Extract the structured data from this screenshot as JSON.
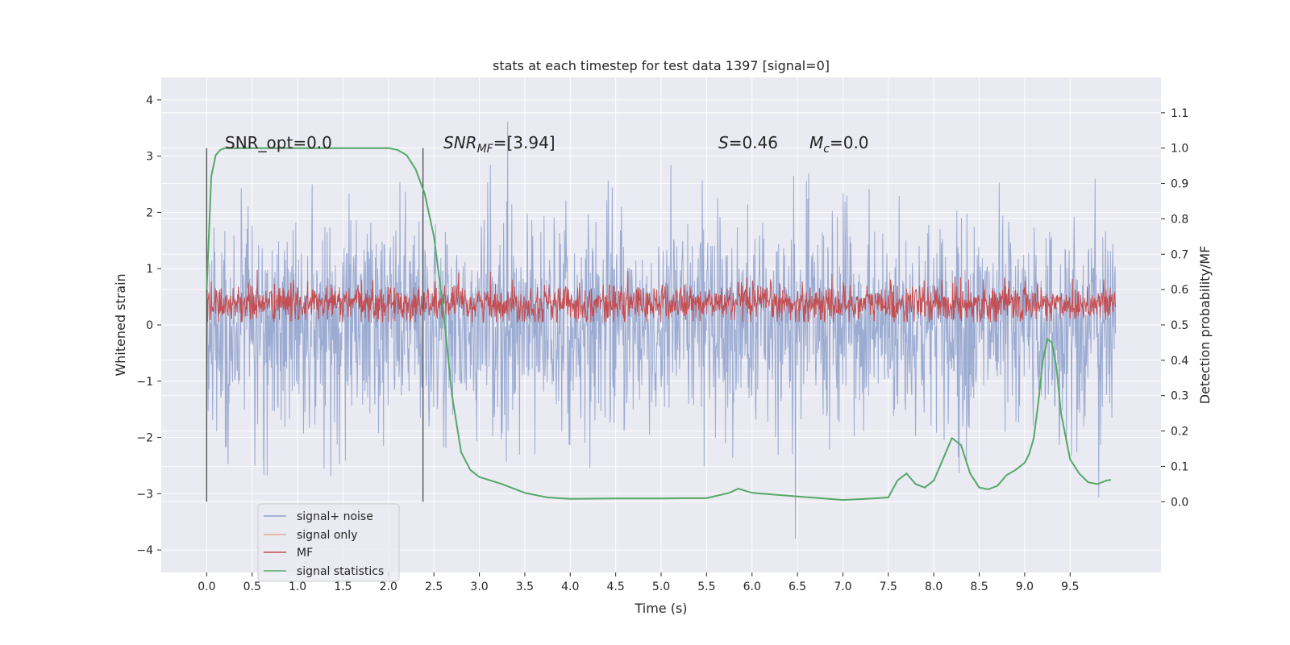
{
  "chart_data": {
    "type": "line",
    "title": "stats at each timestep for test data 1397 [signal=0]",
    "xlabel": "Time (s)",
    "ylabel": "Whitened strain",
    "y2label": "Detection probability/MF",
    "xlim": [
      -0.5,
      10.5
    ],
    "ylim": [
      -4.4,
      4.4
    ],
    "y2lim": [
      -0.2,
      1.2
    ],
    "grid": true,
    "legend_placement": "lower-left",
    "x_ticks": [
      0.0,
      0.5,
      1.0,
      1.5,
      2.0,
      2.5,
      3.0,
      3.5,
      4.0,
      4.5,
      5.0,
      5.5,
      6.0,
      6.5,
      7.0,
      7.5,
      8.0,
      8.5,
      9.0,
      9.5
    ],
    "x_tick_labels": [
      "0.0",
      "0.5",
      "1.0",
      "1.5",
      "2.0",
      "2.5",
      "3.0",
      "3.5",
      "4.0",
      "4.5",
      "5.0",
      "5.5",
      "6.0",
      "6.5",
      "7.0",
      "7.5",
      "8.0",
      "8.5",
      "9.0",
      "9.5"
    ],
    "y_ticks": [
      4,
      3,
      2,
      1,
      0,
      -1,
      -2,
      -3,
      -4
    ],
    "y_tick_labels": [
      "4",
      "3",
      "2",
      "1",
      "0",
      "−1",
      "−2",
      "−3",
      "−4"
    ],
    "y2_ticks": [
      1.1,
      1.0,
      0.9,
      0.8,
      0.7,
      0.6,
      0.5,
      0.4,
      0.3,
      0.2,
      0.1,
      0.0
    ],
    "y2_tick_labels": [
      "1.1",
      "1.0",
      "0.9",
      "0.8",
      "0.7",
      "0.6",
      "0.5",
      "0.4",
      "0.3",
      "0.2",
      "0.1",
      "0.0"
    ],
    "annotations": {
      "snr_opt": "SNR_opt=0.0",
      "snr_mf_main": "SNR",
      "snr_mf_sub": "MF",
      "snr_mf_rest": "=[3.94]",
      "s_main": "S",
      "s_rest": "=0.46",
      "mc_main": "M",
      "mc_sub": "c",
      "mc_rest": "=0.0"
    },
    "vertical_lines_x": [
      0.0,
      2.38
    ],
    "series": [
      {
        "name": "signal+ noise",
        "color": "#8da0cb",
        "axis": "left",
        "kind": "noise",
        "x_range": [
          0.0,
          10.0
        ],
        "typical_range": [
          -1.9,
          1.9
        ],
        "max": 4.0,
        "min": -3.8
      },
      {
        "name": "signal only",
        "color": "#e8a98a",
        "axis": "left",
        "values": [
          0.0,
          0.0
        ]
      },
      {
        "name": "MF",
        "color": "#c44e52",
        "axis": "left",
        "kind": "noise",
        "x_range": [
          0.0,
          10.0
        ],
        "typical_range": [
          0.05,
          0.75
        ],
        "max": 1.0,
        "min": 0.05
      },
      {
        "name": "signal statistics",
        "color": "#55a868",
        "axis": "right",
        "x": [
          0.0,
          0.05,
          0.1,
          0.15,
          0.2,
          0.3,
          0.5,
          1.0,
          1.5,
          2.0,
          2.1,
          2.2,
          2.3,
          2.4,
          2.5,
          2.6,
          2.7,
          2.8,
          2.9,
          3.0,
          3.25,
          3.5,
          3.75,
          4.0,
          4.5,
          5.0,
          5.25,
          5.5,
          5.75,
          5.85,
          6.0,
          6.5,
          6.75,
          7.0,
          7.25,
          7.5,
          7.6,
          7.7,
          7.8,
          7.9,
          8.0,
          8.1,
          8.2,
          8.3,
          8.4,
          8.5,
          8.6,
          8.7,
          8.8,
          8.9,
          9.0,
          9.05,
          9.1,
          9.15,
          9.2,
          9.25,
          9.3,
          9.35,
          9.4,
          9.5,
          9.6,
          9.7,
          9.8,
          9.9,
          9.95
        ],
        "values": [
          0.6,
          0.92,
          0.98,
          0.995,
          1.0,
          1.0,
          1.0,
          1.0,
          1.0,
          1.0,
          0.995,
          0.98,
          0.94,
          0.87,
          0.75,
          0.55,
          0.3,
          0.14,
          0.09,
          0.07,
          0.05,
          0.025,
          0.012,
          0.008,
          0.009,
          0.009,
          0.01,
          0.01,
          0.025,
          0.037,
          0.025,
          0.015,
          0.01,
          0.005,
          0.008,
          0.012,
          0.06,
          0.08,
          0.05,
          0.04,
          0.06,
          0.12,
          0.18,
          0.16,
          0.08,
          0.04,
          0.035,
          0.045,
          0.075,
          0.09,
          0.11,
          0.135,
          0.18,
          0.28,
          0.4,
          0.46,
          0.45,
          0.38,
          0.25,
          0.12,
          0.08,
          0.055,
          0.05,
          0.06,
          0.062
        ]
      }
    ]
  }
}
